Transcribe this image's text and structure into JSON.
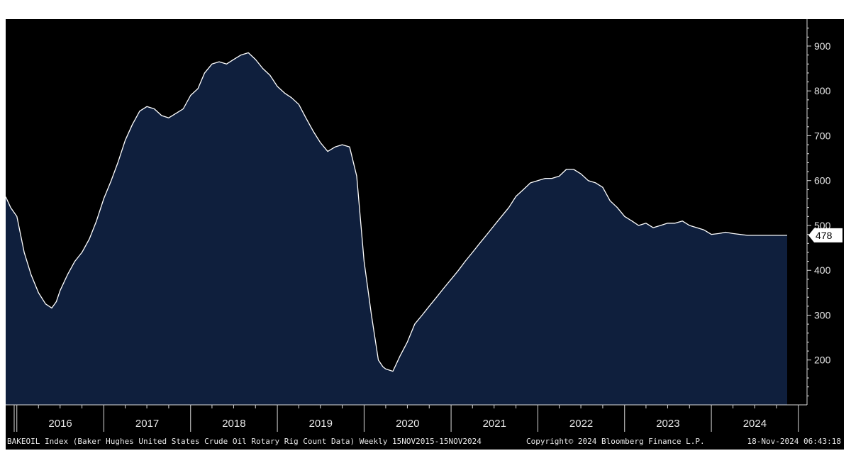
{
  "colors": {
    "background": "#000000",
    "area_fill": "#0f1f3d",
    "line": "#ffffff",
    "axis": "#d9d9d9",
    "last_value_box": "#ffffff",
    "last_value_text": "#000000"
  },
  "footer": {
    "source": "BAKEOIL Index (Baker Hughes United States Crude Oil Rotary Rig Count Data) Weekly 15NOV2015-15NOV2024",
    "copyright": "Copyright© 2024 Bloomberg Finance L.P.",
    "timestamp": "18-Nov-2024 06:43:18"
  },
  "chart_data": {
    "type": "area",
    "title": "",
    "xlabel": "",
    "ylabel": "",
    "frequency": "weekly",
    "x_range": [
      "2015-11-15",
      "2024-11-15"
    ],
    "ylim": [
      100,
      960
    ],
    "y_ticks": [
      200,
      300,
      400,
      500,
      600,
      700,
      800,
      900
    ],
    "x_tick_labels": [
      "2016",
      "2017",
      "2018",
      "2019",
      "2020",
      "2021",
      "2022",
      "2023",
      "2024"
    ],
    "last_value": 478,
    "grid": false,
    "series": [
      {
        "x": [
          "2015-11-15",
          "2015-12-06",
          "2016-01-01",
          "2016-02-01",
          "2016-03-01",
          "2016-04-01",
          "2016-05-01",
          "2016-05-27",
          "2016-06-15",
          "2016-07-01",
          "2016-08-01",
          "2016-09-01",
          "2016-10-01",
          "2016-11-01",
          "2016-12-01",
          "2017-01-01",
          "2017-02-01",
          "2017-03-01",
          "2017-04-01",
          "2017-05-01",
          "2017-06-01",
          "2017-07-01",
          "2017-08-01",
          "2017-09-01",
          "2017-10-01",
          "2017-11-01",
          "2017-12-01",
          "2018-01-01",
          "2018-02-01",
          "2018-03-01",
          "2018-04-01",
          "2018-05-01",
          "2018-06-01",
          "2018-07-01",
          "2018-08-01",
          "2018-09-01",
          "2018-10-01",
          "2018-11-01",
          "2018-12-01",
          "2019-01-01",
          "2019-02-01",
          "2019-03-01",
          "2019-04-01",
          "2019-05-01",
          "2019-06-01",
          "2019-07-01",
          "2019-08-01",
          "2019-09-01",
          "2019-10-01",
          "2019-11-01",
          "2019-12-01",
          "2020-01-01",
          "2020-02-01",
          "2020-03-01",
          "2020-03-20",
          "2020-04-01",
          "2020-05-01",
          "2020-06-01",
          "2020-07-01",
          "2020-08-01",
          "2020-09-01",
          "2020-10-01",
          "2020-11-01",
          "2020-12-01",
          "2021-01-01",
          "2021-02-01",
          "2021-03-01",
          "2021-04-01",
          "2021-05-01",
          "2021-06-01",
          "2021-07-01",
          "2021-08-01",
          "2021-09-01",
          "2021-10-01",
          "2021-11-01",
          "2021-12-01",
          "2022-01-01",
          "2022-02-01",
          "2022-03-01",
          "2022-04-01",
          "2022-05-01",
          "2022-06-01",
          "2022-07-01",
          "2022-08-01",
          "2022-09-01",
          "2022-10-01",
          "2022-11-01",
          "2022-12-01",
          "2023-01-01",
          "2023-02-01",
          "2023-03-01",
          "2023-04-01",
          "2023-05-01",
          "2023-06-01",
          "2023-07-01",
          "2023-08-01",
          "2023-09-01",
          "2023-10-01",
          "2023-11-01",
          "2023-12-01",
          "2024-01-01",
          "2024-02-01",
          "2024-03-01",
          "2024-04-01",
          "2024-05-01",
          "2024-06-01",
          "2024-07-01",
          "2024-08-01",
          "2024-09-01",
          "2024-10-01",
          "2024-11-15"
        ],
        "y": [
          564,
          540,
          520,
          440,
          390,
          350,
          325,
          316,
          330,
          355,
          390,
          420,
          440,
          470,
          510,
          560,
          600,
          640,
          690,
          725,
          755,
          765,
          760,
          745,
          740,
          750,
          760,
          790,
          805,
          840,
          860,
          865,
          860,
          870,
          880,
          885,
          870,
          850,
          835,
          810,
          795,
          785,
          770,
          740,
          710,
          685,
          665,
          675,
          680,
          675,
          610,
          420,
          300,
          200,
          185,
          180,
          175,
          210,
          240,
          280,
          300,
          320,
          340,
          360,
          380,
          400,
          420,
          440,
          460,
          480,
          500,
          520,
          540,
          565,
          580,
          595,
          600,
          605,
          605,
          610,
          625,
          625,
          615,
          600,
          595,
          585,
          555,
          540,
          520,
          510,
          500,
          505,
          495,
          500,
          505,
          505,
          510,
          500,
          495,
          490,
          480,
          482,
          485,
          482,
          480,
          478,
          478,
          478,
          478,
          478,
          478
        ]
      }
    ]
  }
}
